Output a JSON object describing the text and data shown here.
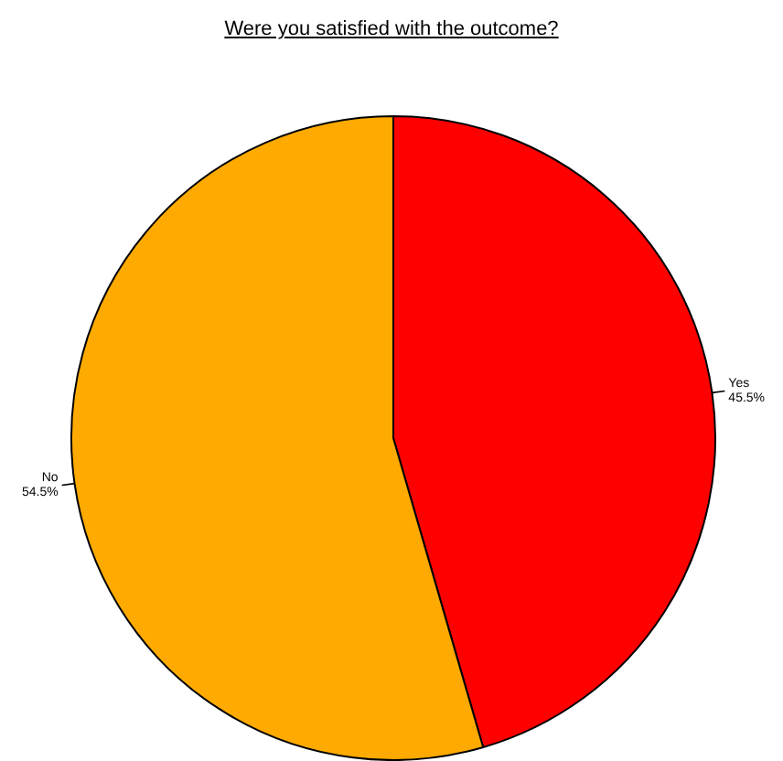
{
  "chart_data": {
    "type": "pie",
    "title": "Were you satisfied with the outcome?",
    "categories": [
      "Yes",
      "No"
    ],
    "values": [
      45.5,
      54.5
    ],
    "colors": [
      "#ff0000",
      "#ffaa00"
    ],
    "value_labels": [
      "45.5%",
      "54.5%"
    ],
    "legend": false
  }
}
